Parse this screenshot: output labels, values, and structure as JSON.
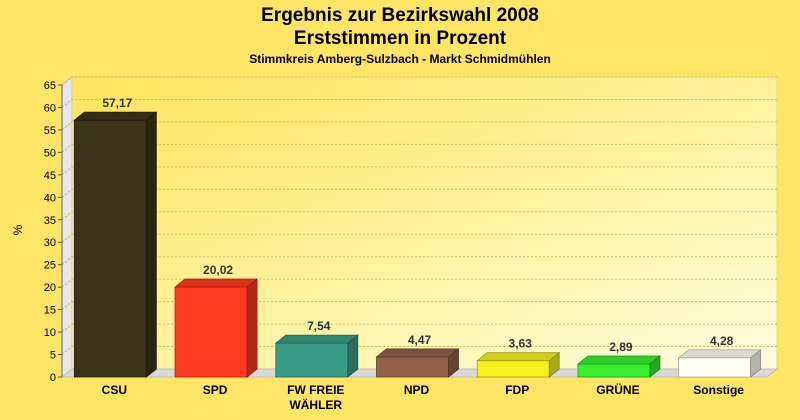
{
  "chart_data": {
    "type": "bar",
    "title_line1": "Ergebnis zur Bezirkswahl 2008",
    "title_line2": "Erststimmen in Prozent",
    "subtitle": "Stimmkreis Amberg-Sulzbach - Markt Schmidmühlen",
    "ylabel": "%",
    "xlabel": "",
    "ylim": [
      0,
      65
    ],
    "yticks": [
      0,
      5,
      10,
      15,
      20,
      25,
      30,
      35,
      40,
      45,
      50,
      55,
      60,
      65
    ],
    "grid": true,
    "categories": [
      {
        "lines": [
          "CSU"
        ]
      },
      {
        "lines": [
          "SPD"
        ]
      },
      {
        "lines": [
          "FW FREIE",
          "WÄHLER"
        ]
      },
      {
        "lines": [
          "NPD"
        ]
      },
      {
        "lines": [
          "FDP"
        ]
      },
      {
        "lines": [
          "GRÜNE"
        ]
      },
      {
        "lines": [
          "Sonstige"
        ]
      }
    ],
    "values": [
      57.17,
      20.02,
      7.54,
      4.47,
      3.63,
      2.89,
      4.28
    ],
    "value_labels": [
      "57,17",
      "20,02",
      "7,54",
      "4,47",
      "3,63",
      "2,89",
      "4,28"
    ],
    "colors": [
      "#3C331B",
      "#FF3A1E",
      "#3A9C87",
      "#91614A",
      "#F7F21E",
      "#37EF2F",
      "#FFFFF5"
    ]
  }
}
